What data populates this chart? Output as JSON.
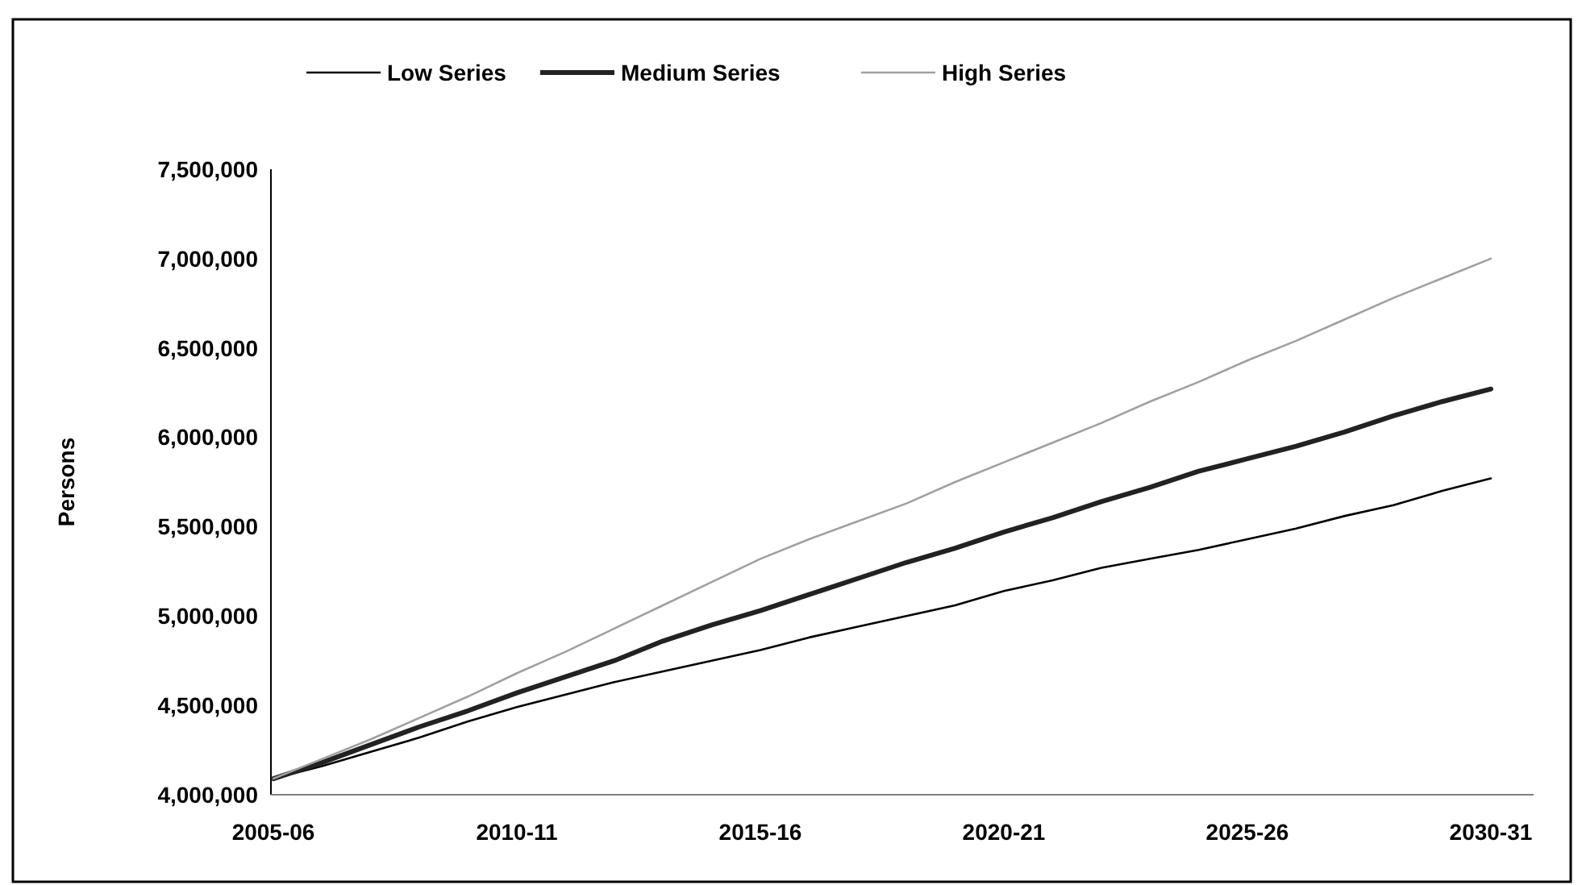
{
  "chart_data": {
    "type": "line",
    "ylabel": "Persons",
    "categories": [
      "2005-06",
      null,
      null,
      null,
      null,
      "2010-11",
      null,
      null,
      null,
      null,
      "2015-16",
      null,
      null,
      null,
      null,
      "2020-21",
      null,
      null,
      null,
      null,
      "2025-26",
      null,
      null,
      null,
      null,
      "2030-31"
    ],
    "series": [
      {
        "name": "Low Series",
        "color": "#000000",
        "values": [
          4090000,
          4160000,
          4240000,
          4320000,
          4410000,
          4490000,
          4560000,
          4630000,
          4690000,
          4750000,
          4810000,
          4880000,
          4940000,
          5000000,
          5060000,
          5140000,
          5200000,
          5270000,
          5320000,
          5370000,
          5430000,
          5490000,
          5560000,
          5620000,
          5700000,
          5770000
        ]
      },
      {
        "name": "Medium Series",
        "color": "#222222",
        "values": [
          4090000,
          4180000,
          4280000,
          4380000,
          4470000,
          4570000,
          4660000,
          4750000,
          4860000,
          4950000,
          5030000,
          5120000,
          5210000,
          5300000,
          5380000,
          5470000,
          5550000,
          5640000,
          5720000,
          5810000,
          5880000,
          5950000,
          6030000,
          6120000,
          6200000,
          6270000
        ]
      },
      {
        "name": "High Series",
        "color": "#a0a0a0",
        "values": [
          4090000,
          4200000,
          4310000,
          4430000,
          4550000,
          4680000,
          4800000,
          4930000,
          5060000,
          5190000,
          5320000,
          5430000,
          5530000,
          5630000,
          5750000,
          5860000,
          5970000,
          6080000,
          6200000,
          6310000,
          6430000,
          6540000,
          6660000,
          6780000,
          6890000,
          7000000
        ]
      }
    ],
    "ylim": [
      4000000,
      7500000
    ],
    "yticks": [
      {
        "value": 4000000,
        "label": "4,000,000"
      },
      {
        "value": 4500000,
        "label": "4,500,000"
      },
      {
        "value": 5000000,
        "label": "5,000,000"
      },
      {
        "value": 5500000,
        "label": "5,500,000"
      },
      {
        "value": 6000000,
        "label": "6,000,000"
      },
      {
        "value": 6500000,
        "label": "6,500,000"
      },
      {
        "value": 7000000,
        "label": "7,000,000"
      },
      {
        "value": 7500000,
        "label": "7,500,000"
      }
    ],
    "legend": "top",
    "grid": false,
    "marker": "none",
    "line_style": "solid"
  }
}
